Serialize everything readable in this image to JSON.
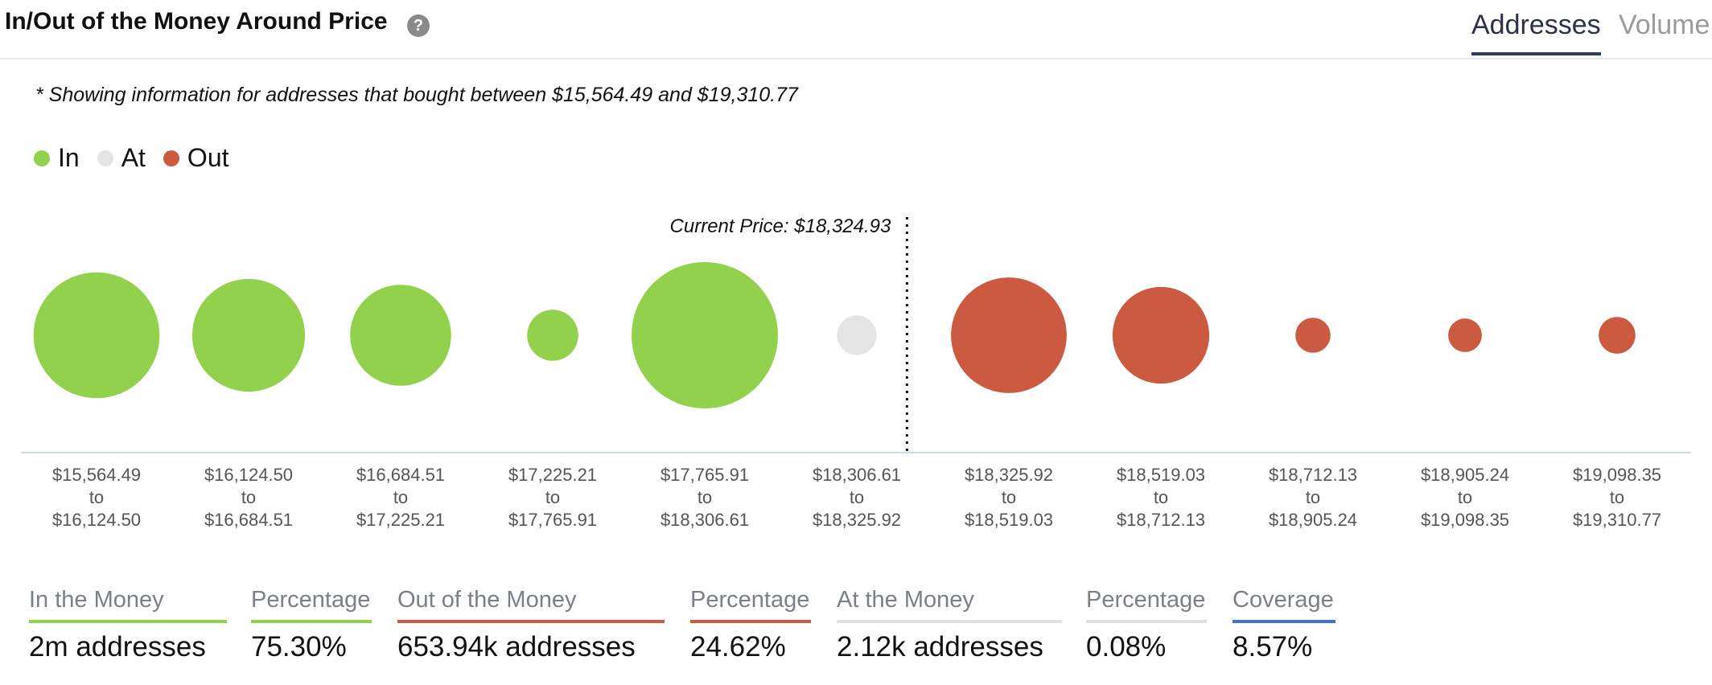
{
  "header": {
    "title": "In/Out of the Money Around Price",
    "help_glyph": "?",
    "tabs": [
      {
        "label": "Addresses",
        "active": true
      },
      {
        "label": "Volume",
        "active": false
      }
    ]
  },
  "note": "* Showing information for addresses that bought between $15,564.49 and $19,310.77",
  "legend": [
    {
      "label": "In",
      "color": "#91d14b"
    },
    {
      "label": "At",
      "color": "#e4e4e4"
    },
    {
      "label": "Out",
      "color": "#cc5a40"
    }
  ],
  "chart_data": {
    "type": "scatter",
    "description_bubble_size": "relative number of addresses per price range",
    "current_price_label": "Current Price: $18,324.93",
    "current_price_position_after_index": 5,
    "categories": [
      {
        "from": "$15,564.49",
        "to_word": "to",
        "to": "$16,124.50",
        "status": "In",
        "size": 0.86
      },
      {
        "from": "$16,124.50",
        "to_word": "to",
        "to": "$16,684.51",
        "status": "In",
        "size": 0.77
      },
      {
        "from": "$16,684.51",
        "to_word": "to",
        "to": "$17,225.21",
        "status": "In",
        "size": 0.69
      },
      {
        "from": "$17,225.21",
        "to_word": "to",
        "to": "$17,765.91",
        "status": "In",
        "size": 0.35
      },
      {
        "from": "$17,765.91",
        "to_word": "to",
        "to": "$18,306.61",
        "status": "In",
        "size": 1.0
      },
      {
        "from": "$18,306.61",
        "to_word": "to",
        "to": "$18,325.92",
        "status": "At",
        "size": 0.27
      },
      {
        "from": "$18,325.92",
        "to_word": "to",
        "to": "$18,519.03",
        "status": "Out",
        "size": 0.79
      },
      {
        "from": "$18,519.03",
        "to_word": "to",
        "to": "$18,712.13",
        "status": "Out",
        "size": 0.66
      },
      {
        "from": "$18,712.13",
        "to_word": "to",
        "to": "$18,905.24",
        "status": "Out",
        "size": 0.24
      },
      {
        "from": "$18,905.24",
        "to_word": "to",
        "to": "$19,098.35",
        "status": "Out",
        "size": 0.23
      },
      {
        "from": "$19,098.35",
        "to_word": "to",
        "to": "$19,310.77",
        "status": "Out",
        "size": 0.25
      }
    ],
    "colors": {
      "In": "#91d14b",
      "At": "#e4e4e4",
      "Out": "#cc5a40"
    }
  },
  "summary": [
    {
      "label": "In the Money",
      "value": "2m addresses",
      "color": "#91d14b"
    },
    {
      "label": "Percentage",
      "value": "75.30%",
      "color": "#91d14b"
    },
    {
      "label": "Out of the Money",
      "value": "653.94k addresses",
      "color": "#cc5a40"
    },
    {
      "label": "Percentage",
      "value": "24.62%",
      "color": "#cc5a40"
    },
    {
      "label": "At the Money",
      "value": "2.12k addresses",
      "color": "#e0e0e0"
    },
    {
      "label": "Percentage",
      "value": "0.08%",
      "color": "#e0e0e0"
    },
    {
      "label": "Coverage",
      "value": "8.57%",
      "color": "#3e6fd8"
    }
  ]
}
